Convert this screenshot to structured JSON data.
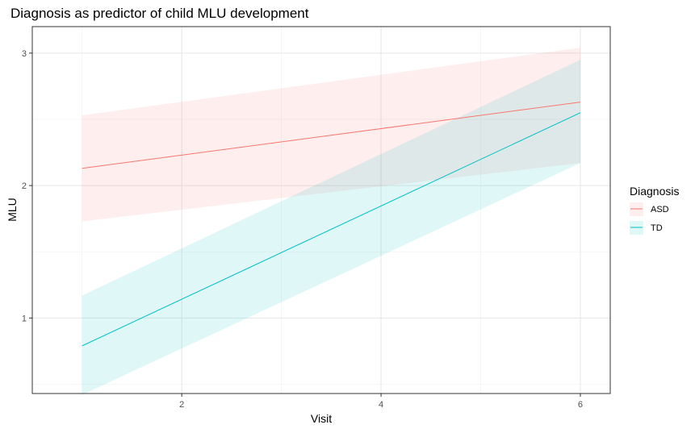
{
  "chart_data": {
    "type": "line",
    "title": "Diagnosis as predictor of child MLU development",
    "xlabel": "Visit",
    "ylabel": "MLU",
    "xlim": [
      0.5,
      6.3
    ],
    "ylim": [
      0.43,
      3.2
    ],
    "x_ticks": [
      2,
      4,
      6
    ],
    "y_ticks": [
      1,
      2,
      3
    ],
    "grid": true,
    "legend": {
      "title": "Diagnosis",
      "position": "right"
    },
    "series": [
      {
        "name": "ASD",
        "color": "#f8766d",
        "band_color": "#f8766d",
        "x": [
          1,
          6
        ],
        "y": [
          2.13,
          2.63
        ],
        "lower": [
          1.73,
          2.17
        ],
        "upper": [
          2.53,
          3.04
        ]
      },
      {
        "name": "TD",
        "color": "#00bfc4",
        "band_color": "#00bfc4",
        "x": [
          1,
          6
        ],
        "y": [
          0.79,
          2.55
        ],
        "lower": [
          0.42,
          2.17
        ],
        "upper": [
          1.17,
          2.95
        ]
      }
    ]
  }
}
